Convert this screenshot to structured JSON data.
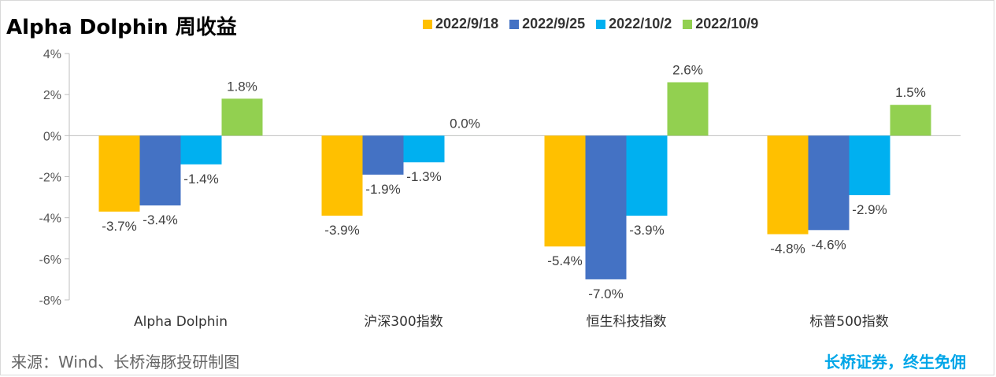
{
  "header": {
    "title": "Alpha Dolphin 周收益"
  },
  "footer": {
    "source": "来源：Wind、长桥海豚投研制图",
    "slogan": "长桥证券，终生免佣"
  },
  "colors": {
    "series": [
      "#ffc000",
      "#4472c4",
      "#00b0f0",
      "#92d050"
    ]
  },
  "chart_data": {
    "type": "bar",
    "title": "Alpha Dolphin 周收益",
    "categories": [
      "Alpha Dolphin",
      "沪深300指数",
      "恒生科技指数",
      "标普500指数"
    ],
    "series": [
      {
        "name": "2022/9/18",
        "values": [
          -3.7,
          -3.9,
          -5.4,
          -4.8
        ],
        "labels": [
          "-3.7%",
          "-3.9%",
          "-5.4%",
          "-4.8%"
        ]
      },
      {
        "name": "2022/9/25",
        "values": [
          -3.4,
          -1.9,
          -7.0,
          -4.6
        ],
        "labels": [
          "-3.4%",
          "-1.9%",
          "-7.0%",
          "-4.6%"
        ]
      },
      {
        "name": "2022/10/2",
        "values": [
          -1.4,
          -1.3,
          -3.9,
          -2.9
        ],
        "labels": [
          "-1.4%",
          "-1.3%",
          "-3.9%",
          "-2.9%"
        ]
      },
      {
        "name": "2022/10/9",
        "values": [
          1.8,
          0.0,
          2.6,
          1.5
        ],
        "labels": [
          "1.8%",
          "0.0%",
          "2.6%",
          "1.5%"
        ]
      }
    ],
    "ylim": [
      -8,
      4
    ],
    "yticks": [
      4,
      2,
      0,
      -2,
      -4,
      -6,
      -8
    ],
    "ytick_labels": [
      "4%",
      "2%",
      "0%",
      "-2%",
      "-4%",
      "-6%",
      "-8%"
    ],
    "legend_position": "top",
    "grid": false
  }
}
